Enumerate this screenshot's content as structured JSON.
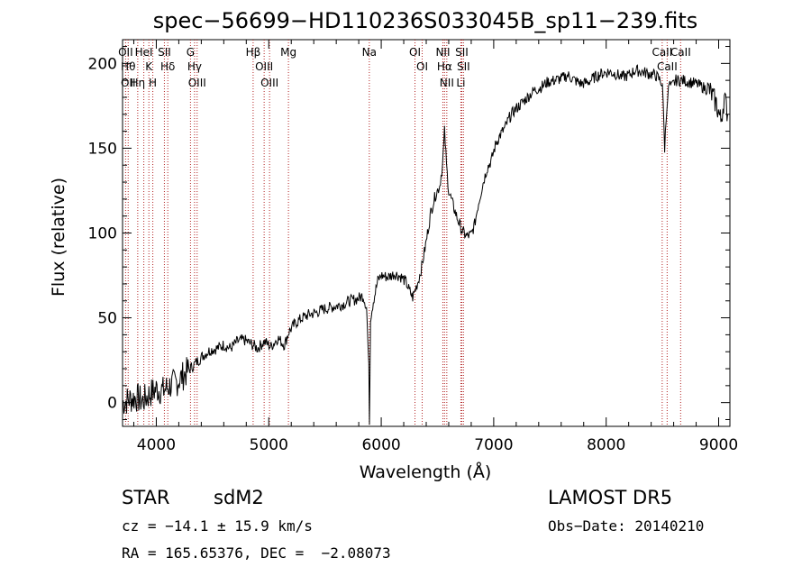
{
  "chart_data": {
    "type": "line",
    "title": "spec−56699−HD110236S033045B_sp11−239.fits",
    "xlabel": "Wavelength (Å)",
    "ylabel": "Flux (relative)",
    "xlim": [
      3700,
      9100
    ],
    "ylim": [
      -14,
      214
    ],
    "xticks": [
      4000,
      5000,
      6000,
      7000,
      8000,
      9000
    ],
    "yticks": [
      0,
      50,
      100,
      150,
      200
    ],
    "grid": false,
    "line_color": "#000000",
    "marker_color": "#b22222",
    "series": [
      {
        "x": [
          3700,
          3760,
          3820,
          3880,
          3940,
          4000,
          4060,
          4120,
          4180,
          4240,
          4300,
          4360,
          4420,
          4480,
          4540,
          4600,
          4660,
          4720,
          4780,
          4860,
          4900,
          4960,
          5020,
          5080,
          5140,
          5180,
          5240,
          5300,
          5360,
          5420,
          5480,
          5540,
          5600,
          5660,
          5720,
          5780,
          5840,
          5870,
          5890,
          5895,
          5905,
          5930,
          5970,
          6000,
          6060,
          6120,
          6180,
          6220,
          6250,
          6280,
          6330,
          6360,
          6400,
          6440,
          6480,
          6520,
          6545,
          6563,
          6580,
          6600,
          6640,
          6680,
          6720,
          6760,
          6800,
          6830,
          6860,
          6900,
          6940,
          6980,
          7020,
          7060,
          7100,
          7140,
          7180,
          7240,
          7300,
          7360,
          7420,
          7480,
          7540,
          7600,
          7660,
          7720,
          7780,
          7840,
          7900,
          7960,
          8020,
          8080,
          8140,
          8200,
          8260,
          8320,
          8380,
          8440,
          8480,
          8500,
          8520,
          8540,
          8560,
          8580,
          8620,
          8680,
          8740,
          8800,
          8860,
          8920,
          8980,
          9020,
          9050,
          9080
        ],
        "y": [
          0,
          2,
          3,
          1,
          5,
          8,
          7,
          10,
          12,
          16,
          20,
          24,
          28,
          31,
          32,
          34,
          32,
          36,
          37,
          34,
          32,
          36,
          33,
          38,
          34,
          42,
          47,
          50,
          52,
          53,
          55,
          56,
          57,
          58,
          60,
          61,
          63,
          56,
          20,
          -12,
          50,
          60,
          72,
          75,
          74,
          76,
          74,
          71,
          66,
          62,
          72,
          80,
          95,
          112,
          122,
          128,
          140,
          160,
          140,
          125,
          116,
          108,
          101,
          98,
          99,
          105,
          116,
          128,
          138,
          143,
          153,
          158,
          162,
          168,
          172,
          176,
          180,
          184,
          186,
          189,
          190,
          191,
          193,
          190,
          188,
          189,
          192,
          194,
          195,
          194,
          192,
          193,
          196,
          195,
          194,
          193,
          190,
          188,
          150,
          176,
          188,
          186,
          190,
          190,
          189,
          188,
          186,
          184,
          176,
          166,
          180,
          170
        ]
      }
    ],
    "lines": [
      {
        "x": 3727,
        "labels": [
          "OII"
        ]
      },
      {
        "x": 3750,
        "labels": [
          "Hθ",
          "OII"
        ]
      },
      {
        "x": 3835,
        "labels": [
          "Hη"
        ]
      },
      {
        "x": 3889,
        "labels": [
          "HeI"
        ]
      },
      {
        "x": 3934,
        "labels": [
          "K"
        ]
      },
      {
        "x": 3969,
        "labels": [
          "H"
        ]
      },
      {
        "x": 4072,
        "labels": [
          "SII"
        ]
      },
      {
        "x": 4102,
        "labels": [
          "Hδ"
        ]
      },
      {
        "x": 4304,
        "labels": [
          "G"
        ]
      },
      {
        "x": 4340,
        "labels": [
          "Hγ"
        ]
      },
      {
        "x": 4363,
        "labels": [
          "OIII"
        ]
      },
      {
        "x": 4861,
        "labels": [
          "Hβ"
        ]
      },
      {
        "x": 4959,
        "labels": [
          "OIII"
        ]
      },
      {
        "x": 5007,
        "labels": [
          "OIII"
        ]
      },
      {
        "x": 5175,
        "labels": [
          "Mg"
        ]
      },
      {
        "x": 5894,
        "labels": [
          "Na"
        ]
      },
      {
        "x": 6300,
        "labels": [
          "OI"
        ]
      },
      {
        "x": 6364,
        "labels": [
          "OI"
        ]
      },
      {
        "x": 6548,
        "labels": [
          "NII"
        ]
      },
      {
        "x": 6563,
        "labels": [
          "Hα"
        ]
      },
      {
        "x": 6583,
        "labels": [
          "NII"
        ]
      },
      {
        "x": 6708,
        "labels": [
          "Li"
        ]
      },
      {
        "x": 6716,
        "labels": [
          "SII"
        ]
      },
      {
        "x": 6731,
        "labels": [
          "SII"
        ]
      },
      {
        "x": 8498,
        "labels": [
          "CaII"
        ]
      },
      {
        "x": 8542,
        "labels": [
          "CaII"
        ]
      },
      {
        "x": 8662,
        "labels": [
          "CaII"
        ]
      }
    ]
  },
  "info": {
    "class_label": "STAR",
    "subclass": "sdM2",
    "survey": "LAMOST DR5",
    "cz_line": "cz = −14.1 ± 15.9 km/s",
    "obs_date": "Obs−Date: 20140210",
    "coords": "RA = 165.65376, DEC =  −2.08073"
  }
}
